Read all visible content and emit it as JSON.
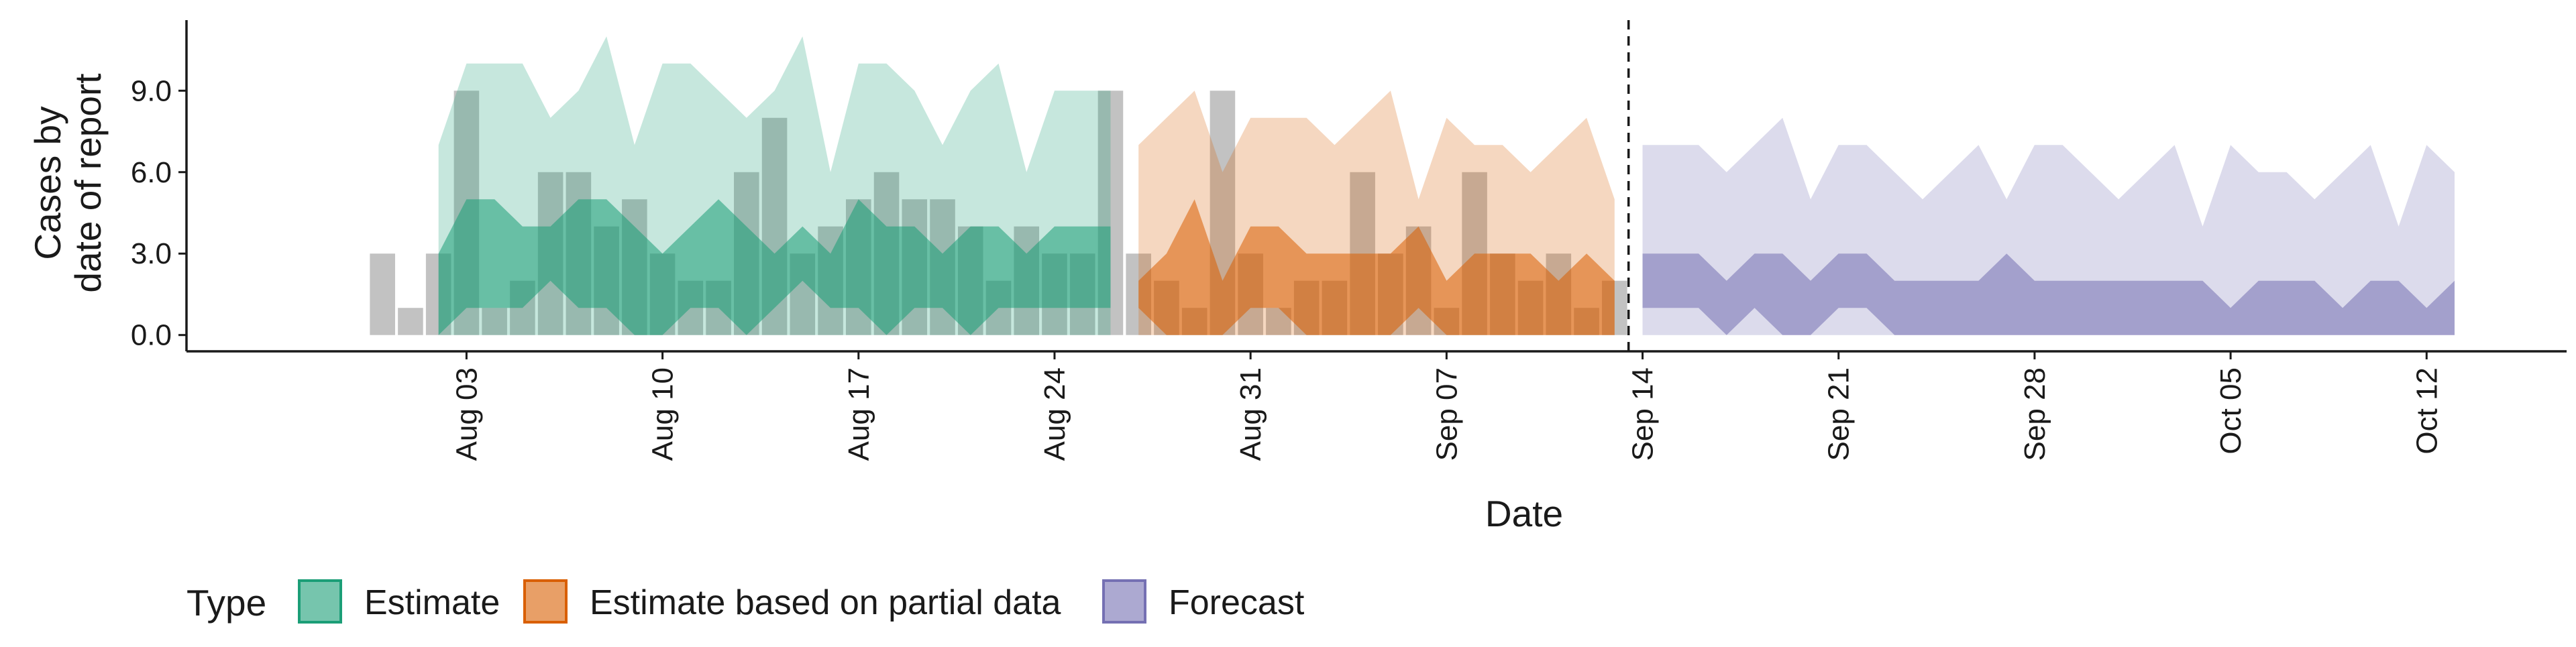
{
  "chart_data": {
    "type": "area",
    "xlabel": "Date",
    "ylabel_lines": [
      "Cases by",
      "date of report"
    ],
    "ylim": [
      -0.6,
      11.6
    ],
    "xlim": [
      "2020-07-24",
      "2020-10-17"
    ],
    "x_tick_labels": [
      {
        "date": "2020-08-03",
        "label": "Aug 03"
      },
      {
        "date": "2020-08-10",
        "label": "Aug 10"
      },
      {
        "date": "2020-08-17",
        "label": "Aug 17"
      },
      {
        "date": "2020-08-24",
        "label": "Aug 24"
      },
      {
        "date": "2020-08-31",
        "label": "Aug 31"
      },
      {
        "date": "2020-09-07",
        "label": "Sep 07"
      },
      {
        "date": "2020-09-14",
        "label": "Sep 14"
      },
      {
        "date": "2020-09-21",
        "label": "Sep 21"
      },
      {
        "date": "2020-09-28",
        "label": "Sep 28"
      },
      {
        "date": "2020-10-05",
        "label": "Oct 05"
      },
      {
        "date": "2020-10-12",
        "label": "Oct 12"
      }
    ],
    "y_ticks": [
      0,
      3,
      6,
      9
    ],
    "y_tick_labels": [
      "0.0",
      "3.0",
      "6.0",
      "9.0"
    ],
    "vline_date": "2020-09-13",
    "grid": false,
    "legend": {
      "title": "Type",
      "position": "bottom-left",
      "entries": [
        {
          "label": "Estimate",
          "color": "#1B9E77"
        },
        {
          "label": "Estimate based on partial data",
          "color": "#D95F02"
        },
        {
          "label": "Forecast",
          "color": "#7570B3"
        }
      ]
    },
    "observed_bars": {
      "color": "#9a9a9a",
      "dates": [
        "2020-07-31",
        "2020-08-01",
        "2020-08-02",
        "2020-08-03",
        "2020-08-04",
        "2020-08-05",
        "2020-08-06",
        "2020-08-07",
        "2020-08-08",
        "2020-08-09",
        "2020-08-10",
        "2020-08-11",
        "2020-08-12",
        "2020-08-13",
        "2020-08-14",
        "2020-08-15",
        "2020-08-16",
        "2020-08-17",
        "2020-08-18",
        "2020-08-19",
        "2020-08-20",
        "2020-08-21",
        "2020-08-22",
        "2020-08-23",
        "2020-08-24",
        "2020-08-25",
        "2020-08-26",
        "2020-08-27",
        "2020-08-28",
        "2020-08-29",
        "2020-08-30",
        "2020-08-31",
        "2020-09-01",
        "2020-09-02",
        "2020-09-03",
        "2020-09-04",
        "2020-09-05",
        "2020-09-06",
        "2020-09-07",
        "2020-09-08",
        "2020-09-09",
        "2020-09-10",
        "2020-09-11",
        "2020-09-12",
        "2020-09-13"
      ],
      "values": [
        3,
        1,
        3,
        9,
        1,
        2,
        6,
        6,
        4,
        5,
        3,
        2,
        2,
        6,
        8,
        3,
        4,
        5,
        6,
        5,
        5,
        4,
        2,
        4,
        3,
        3,
        9,
        3,
        2,
        1,
        9,
        3,
        1,
        2,
        2,
        6,
        3,
        4,
        1,
        6,
        3,
        2,
        3,
        1,
        2
      ]
    },
    "series": [
      {
        "name": "Estimate",
        "color": "#1B9E77",
        "dates": [
          "2020-08-02",
          "2020-08-03",
          "2020-08-04",
          "2020-08-05",
          "2020-08-06",
          "2020-08-07",
          "2020-08-08",
          "2020-08-09",
          "2020-08-10",
          "2020-08-11",
          "2020-08-12",
          "2020-08-13",
          "2020-08-14",
          "2020-08-15",
          "2020-08-16",
          "2020-08-17",
          "2020-08-18",
          "2020-08-19",
          "2020-08-20",
          "2020-08-21",
          "2020-08-22",
          "2020-08-23",
          "2020-08-24",
          "2020-08-25",
          "2020-08-26"
        ],
        "outer_low": [
          0,
          0,
          0,
          0,
          0,
          0,
          0,
          0,
          0,
          0,
          0,
          0,
          0,
          0,
          0,
          0,
          0,
          0,
          0,
          0,
          0,
          0,
          0,
          0,
          0
        ],
        "outer_high": [
          7,
          10,
          10,
          10,
          8,
          9,
          11,
          7,
          10,
          10,
          9,
          8,
          9,
          11,
          6,
          10,
          10,
          9,
          7,
          9,
          10,
          6,
          9,
          9,
          9
        ],
        "inner_low": [
          0,
          1,
          1,
          1,
          2,
          1,
          1,
          0,
          0,
          1,
          1,
          0,
          1,
          2,
          1,
          1,
          0,
          1,
          1,
          0,
          1,
          1,
          1,
          1,
          1
        ],
        "inner_high": [
          3,
          5,
          5,
          4,
          4,
          5,
          5,
          4,
          3,
          4,
          5,
          4,
          3,
          4,
          3,
          5,
          4,
          4,
          3,
          4,
          4,
          3,
          4,
          4,
          4
        ]
      },
      {
        "name": "Estimate based on partial data",
        "color": "#D95F02",
        "dates": [
          "2020-08-27",
          "2020-08-28",
          "2020-08-29",
          "2020-08-30",
          "2020-08-31",
          "2020-09-01",
          "2020-09-02",
          "2020-09-03",
          "2020-09-04",
          "2020-09-05",
          "2020-09-06",
          "2020-09-07",
          "2020-09-08",
          "2020-09-09",
          "2020-09-10",
          "2020-09-11",
          "2020-09-12",
          "2020-09-13"
        ],
        "outer_low": [
          0,
          0,
          0,
          0,
          0,
          0,
          0,
          0,
          0,
          0,
          0,
          0,
          0,
          0,
          0,
          0,
          0,
          0
        ],
        "outer_high": [
          7,
          8,
          9,
          6,
          8,
          8,
          8,
          7,
          8,
          9,
          5,
          8,
          7,
          7,
          6,
          7,
          8,
          5
        ],
        "inner_low": [
          1,
          0,
          0,
          0,
          1,
          1,
          0,
          0,
          0,
          0,
          1,
          0,
          0,
          0,
          0,
          0,
          0,
          0
        ],
        "inner_high": [
          2,
          3,
          5,
          2,
          4,
          4,
          3,
          3,
          3,
          3,
          4,
          2,
          3,
          3,
          3,
          2,
          3,
          2
        ]
      },
      {
        "name": "Forecast",
        "color": "#7570B3",
        "dates": [
          "2020-09-14",
          "2020-09-15",
          "2020-09-16",
          "2020-09-17",
          "2020-09-18",
          "2020-09-19",
          "2020-09-20",
          "2020-09-21",
          "2020-09-22",
          "2020-09-23",
          "2020-09-24",
          "2020-09-25",
          "2020-09-26",
          "2020-09-27",
          "2020-09-28",
          "2020-09-29",
          "2020-09-30",
          "2020-10-01",
          "2020-10-02",
          "2020-10-03",
          "2020-10-04",
          "2020-10-05",
          "2020-10-06",
          "2020-10-07",
          "2020-10-08",
          "2020-10-09",
          "2020-10-10",
          "2020-10-11",
          "2020-10-12",
          "2020-10-13"
        ],
        "outer_low": [
          0,
          0,
          0,
          0,
          0,
          0,
          0,
          0,
          0,
          0,
          0,
          0,
          0,
          0,
          0,
          0,
          0,
          0,
          0,
          0,
          0,
          0,
          0,
          0,
          0,
          0,
          0,
          0,
          0,
          0
        ],
        "outer_high": [
          7,
          7,
          7,
          6,
          7,
          8,
          5,
          7,
          7,
          6,
          5,
          6,
          7,
          5,
          7,
          7,
          6,
          5,
          6,
          7,
          4,
          7,
          6,
          6,
          5,
          6,
          7,
          4,
          7,
          6
        ],
        "inner_low": [
          1,
          1,
          1,
          0,
          1,
          0,
          0,
          1,
          1,
          0,
          0,
          0,
          0,
          0,
          0,
          0,
          0,
          0,
          0,
          0,
          0,
          0,
          0,
          0,
          0,
          0,
          0,
          0,
          0,
          0
        ],
        "inner_high": [
          3,
          3,
          3,
          2,
          3,
          3,
          2,
          3,
          3,
          2,
          2,
          2,
          2,
          3,
          2,
          2,
          2,
          2,
          2,
          2,
          2,
          1,
          2,
          2,
          2,
          1,
          2,
          2,
          1,
          2
        ]
      }
    ]
  }
}
